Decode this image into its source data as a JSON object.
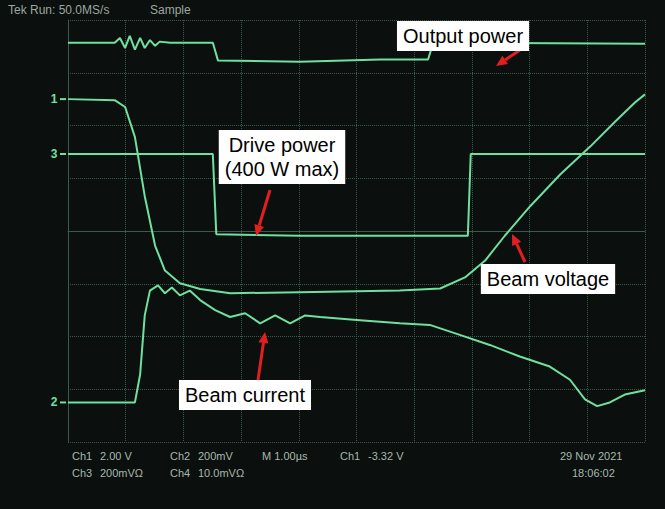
{
  "chart_data": {
    "type": "line",
    "xlim": [
      0,
      10
    ],
    "xticks": [
      0,
      1,
      2,
      3,
      4,
      5,
      6,
      7,
      8,
      9,
      10
    ],
    "ylim": [
      -4,
      4
    ],
    "yticks": [
      -4,
      -3,
      -2,
      -1,
      0,
      1,
      2,
      3,
      4
    ],
    "grid": true,
    "tick_labels": false,
    "series": [
      {
        "name": "Output power",
        "color": "#6fe0a0",
        "x": [
          0,
          0.81,
          0.9,
          0.99,
          1.07,
          1.16,
          1.25,
          1.33,
          1.42,
          1.51,
          1.59,
          1.77,
          2.51,
          2.6,
          4.02,
          5.41,
          6.24,
          6.33,
          10
        ],
        "values": [
          3.57,
          3.57,
          3.66,
          3.47,
          3.7,
          3.44,
          3.66,
          3.47,
          3.62,
          3.51,
          3.59,
          3.57,
          3.57,
          3.23,
          3.21,
          3.25,
          3.25,
          3.57,
          3.55
        ]
      },
      {
        "name": "Drive power (400 W max)",
        "color": "#6fe0a0",
        "x": [
          0,
          2.51,
          2.57,
          4.02,
          6.93,
          6.98,
          10
        ],
        "values": [
          1.46,
          1.46,
          -0.06,
          -0.09,
          -0.09,
          1.46,
          1.46
        ]
      },
      {
        "name": "Beam voltage",
        "color": "#6fe0a0",
        "x": [
          0,
          0.81,
          0.99,
          1.16,
          1.33,
          1.51,
          1.68,
          1.94,
          2.29,
          2.81,
          4.02,
          5.75,
          6.45,
          6.88,
          7.23,
          7.57,
          8.01,
          8.53,
          9.05,
          9.48,
          9.83,
          10
        ],
        "values": [
          2.5,
          2.48,
          2.35,
          1.78,
          0.66,
          -0.28,
          -0.75,
          -0.99,
          -1.1,
          -1.18,
          -1.16,
          -1.13,
          -1.09,
          -0.88,
          -0.56,
          -0.09,
          0.47,
          1.07,
          1.6,
          2.07,
          2.44,
          2.59
        ]
      },
      {
        "name": "Beam current",
        "color": "#6fe0a0",
        "x": [
          0,
          1.16,
          1.25,
          1.33,
          1.42,
          1.56,
          1.68,
          1.8,
          1.94,
          2.11,
          2.29,
          2.55,
          2.81,
          3.07,
          3.33,
          3.59,
          3.85,
          4.11,
          4.37,
          5.06,
          5.75,
          6.27,
          6.79,
          7.31,
          7.83,
          8.35,
          8.7,
          8.96,
          9.17,
          9.39,
          9.65,
          10
        ],
        "values": [
          -3.25,
          -3.25,
          -2.72,
          -1.6,
          -1.13,
          -1.03,
          -1.18,
          -1.07,
          -1.22,
          -1.13,
          -1.31,
          -1.5,
          -1.63,
          -1.56,
          -1.75,
          -1.6,
          -1.75,
          -1.6,
          -1.63,
          -1.69,
          -1.75,
          -1.78,
          -1.97,
          -2.16,
          -2.38,
          -2.57,
          -2.82,
          -3.19,
          -3.32,
          -3.25,
          -3.1,
          -3.02
        ]
      }
    ],
    "channel_markers": [
      {
        "label": "1",
        "value": 2.5
      },
      {
        "label": "3",
        "value": 1.46
      },
      {
        "label": "2",
        "value": -3.25
      }
    ],
    "screen_texts": {
      "header": [
        "Tek Run: 50.0MS/s",
        "Sample"
      ],
      "status": [
        "Ch1",
        "2.00 V",
        "Ch2",
        "200mV",
        "M 1.00µs",
        "Ch1",
        "-3.32 V",
        "Ch3",
        "200mVΩ",
        "Ch4",
        "10.0mVΩ",
        "29 Nov 2021",
        "18:06:02"
      ]
    }
  }
}
